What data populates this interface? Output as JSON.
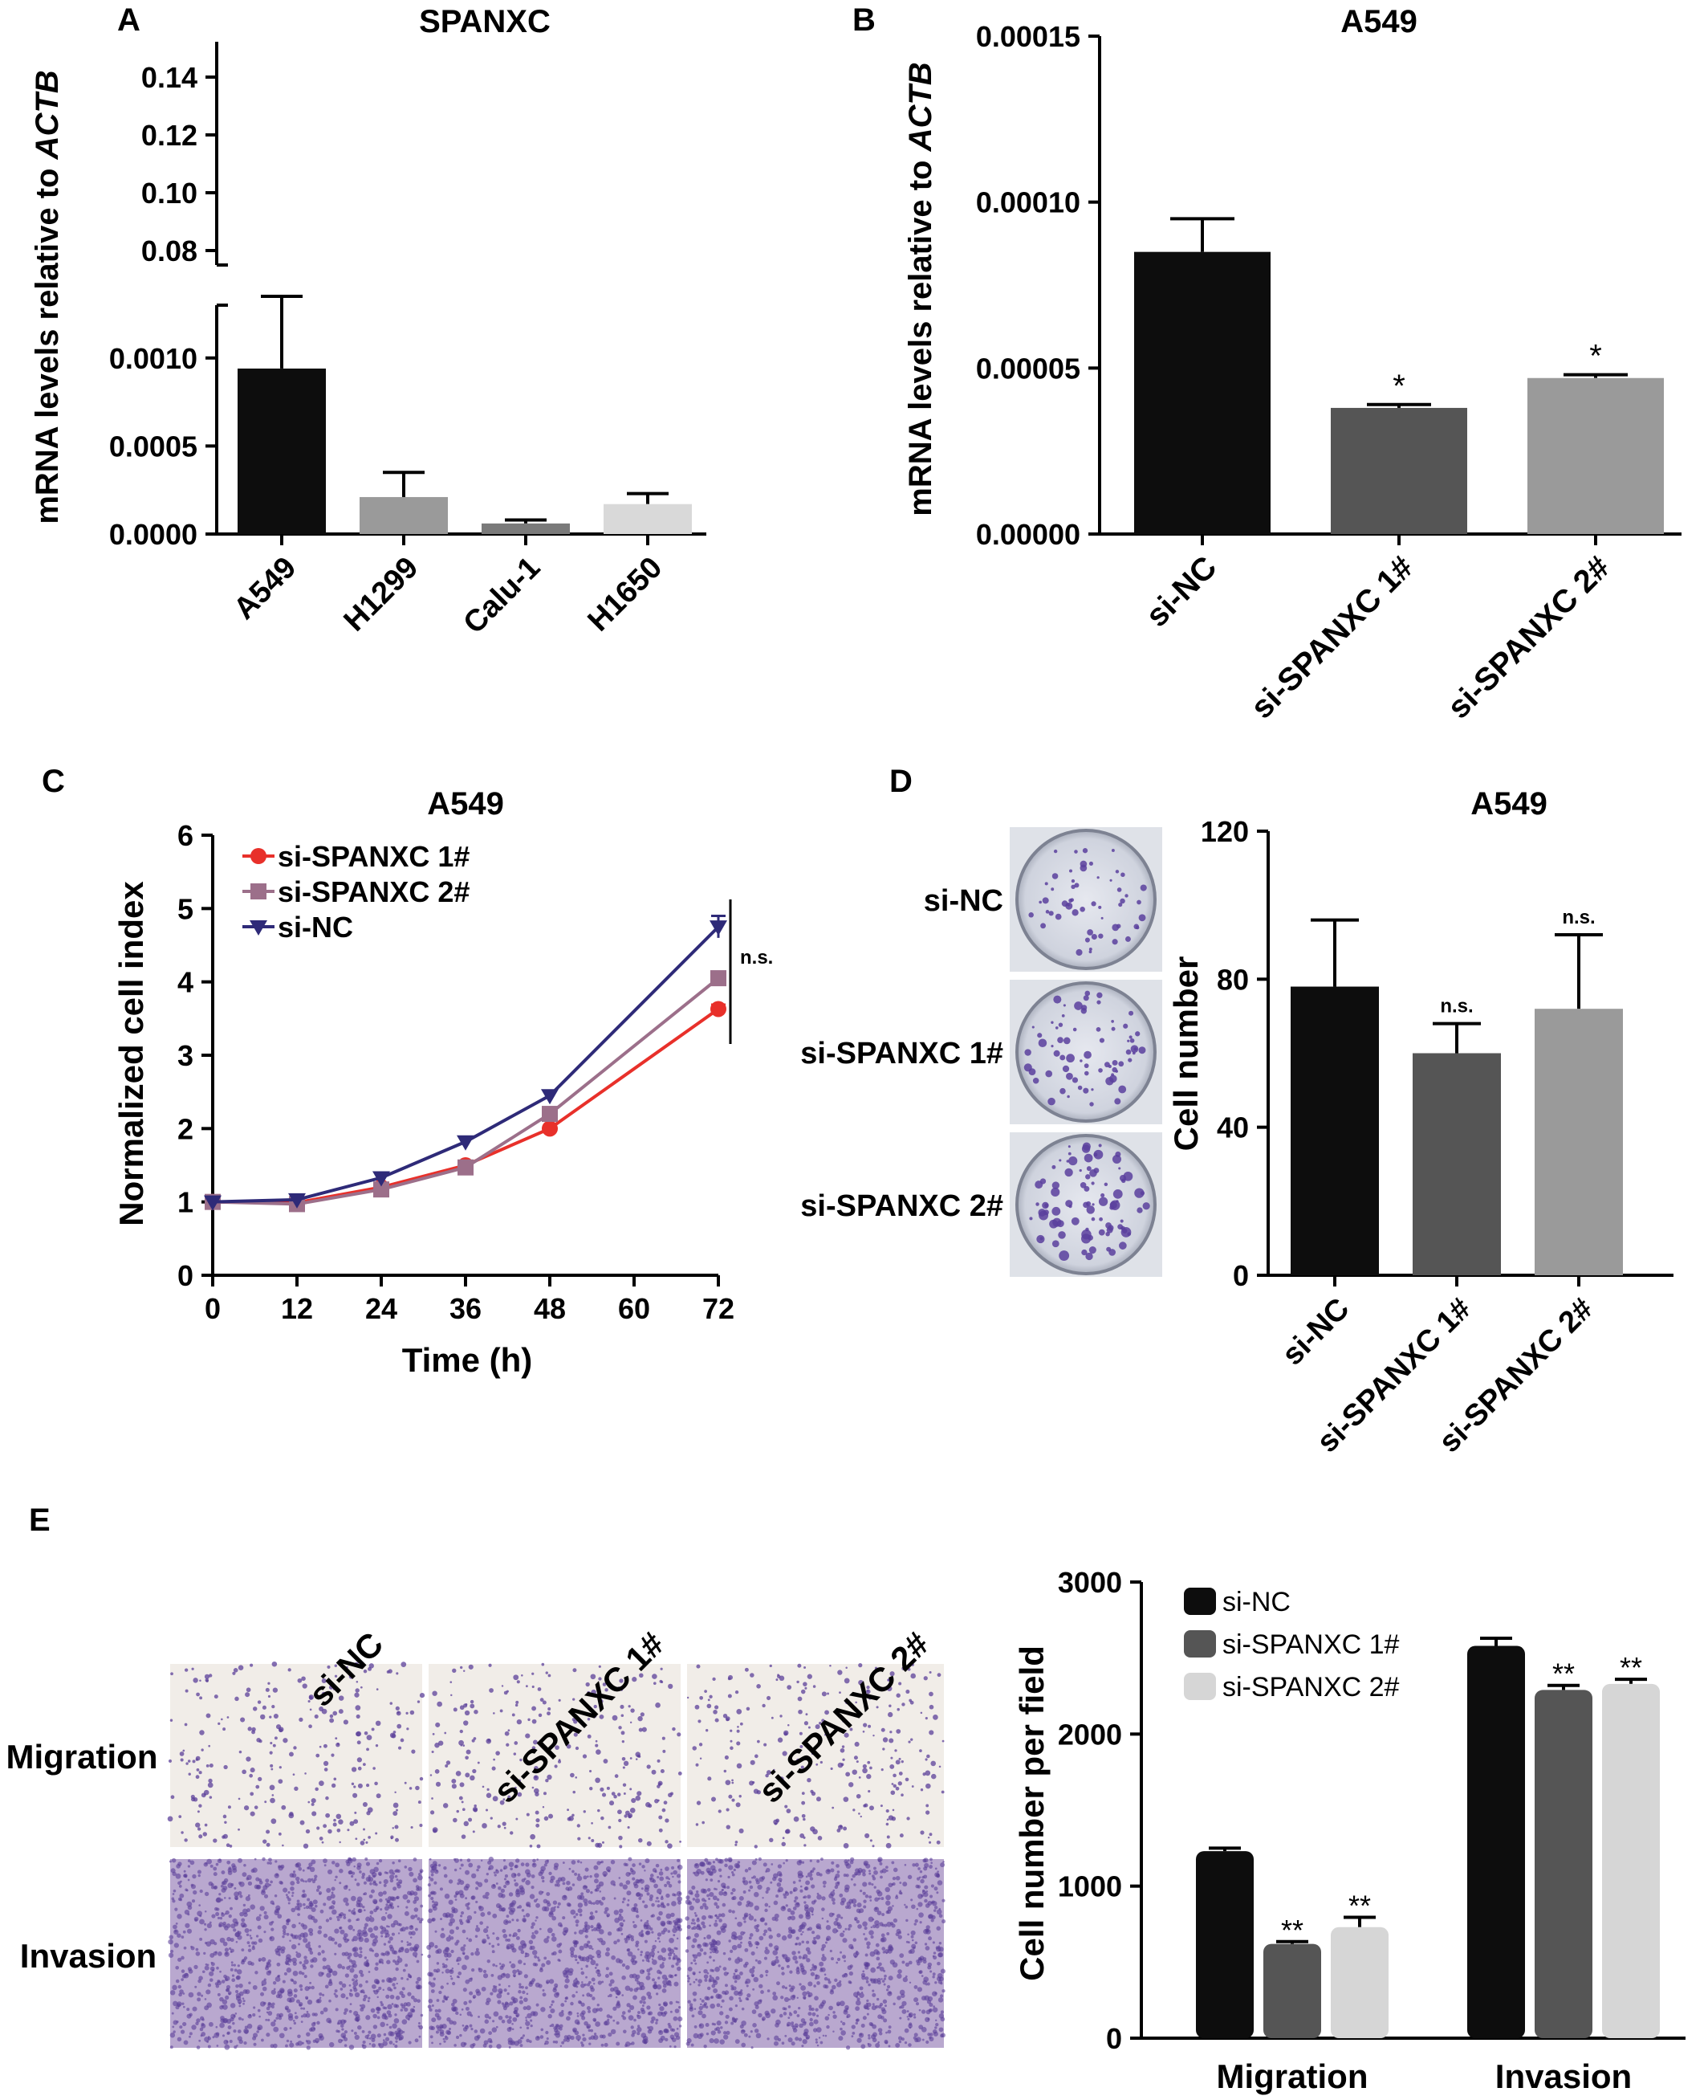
{
  "chart_data": [
    {
      "panel": "A",
      "type": "bar",
      "title": "SPANXC",
      "ylabel": "mRNA levels relative to ACTB",
      "ylabel_plain": "mRNA levels relative to ",
      "ylabel_italic": "ACTB",
      "categories": [
        "A549",
        "H1299",
        "Calu-1",
        "H1650"
      ],
      "values": [
        0.00094,
        0.00021,
        6e-05,
        0.00017
      ],
      "errors": [
        0.00041,
        0.00014,
        2e-05,
        6e-05
      ],
      "colors": [
        "#0d0d0d",
        "#9a9a9a",
        "#7a7a7a",
        "#d9d9d9"
      ],
      "axis_break": true,
      "y_lower_range": [
        0,
        0.0013
      ],
      "y_lower_ticks": [
        "0.0000",
        "0.0005",
        "0.0010"
      ],
      "y_upper_range": [
        0.075,
        0.15
      ],
      "y_upper_ticks": [
        "0.08",
        "0.10",
        "0.12",
        "0.14"
      ]
    },
    {
      "panel": "B",
      "type": "bar",
      "title": "A549",
      "ylabel": "mRNA levels relative to ACTB",
      "ylabel_plain": "mRNA levels relative to ",
      "ylabel_italic": "ACTB",
      "categories": [
        "si-NC",
        "si-SPANXC 1#",
        "si-SPANXC 2#"
      ],
      "values": [
        8.5e-05,
        3.8e-05,
        4.7e-05
      ],
      "errors": [
        1e-05,
        1e-06,
        1e-06
      ],
      "significance": [
        "",
        "*",
        "*"
      ],
      "colors": [
        "#0d0d0d",
        "#555555",
        "#9a9a9a"
      ],
      "ylim": [
        0,
        0.00015
      ],
      "yticks": [
        "0.00000",
        "0.00005",
        "0.00010",
        "0.00015"
      ]
    },
    {
      "panel": "C",
      "type": "line",
      "title": "A549",
      "xlabel": "Time (h)",
      "ylabel": "Normalized cell index",
      "x": [
        0,
        12,
        24,
        36,
        48,
        72
      ],
      "xlim": [
        0,
        72
      ],
      "xticks": [
        "0",
        "12",
        "24",
        "36",
        "48",
        "60",
        "72"
      ],
      "ylim": [
        0,
        6
      ],
      "yticks": [
        "0",
        "1",
        "2",
        "3",
        "4",
        "5",
        "6"
      ],
      "series": [
        {
          "name": "si-SPANXC 1#",
          "color": "#e8302a",
          "marker": "circle",
          "values": [
            1.0,
            0.99,
            1.2,
            1.5,
            2.0,
            3.63
          ],
          "errors": [
            0,
            0,
            0,
            0,
            0,
            0.06
          ]
        },
        {
          "name": "si-SPANXC 2#",
          "color": "#9c6f8a",
          "marker": "square",
          "values": [
            1.0,
            0.97,
            1.17,
            1.47,
            2.2,
            4.05
          ],
          "errors": [
            0,
            0,
            0,
            0,
            0,
            0.05
          ]
        },
        {
          "name": "si-NC",
          "color": "#2e2a78",
          "marker": "triangle-down",
          "values": [
            1.0,
            1.03,
            1.33,
            1.82,
            2.45,
            4.75
          ],
          "errors": [
            0,
            0,
            0,
            0,
            0,
            0.15
          ]
        }
      ],
      "annotation": "n.s."
    },
    {
      "panel": "D",
      "type": "bar",
      "title": "A549",
      "ylabel": "Cell number",
      "categories": [
        "si-NC",
        "si-SPANXC 1#",
        "si-SPANXC 2#"
      ],
      "values": [
        78,
        60,
        72
      ],
      "errors": [
        18,
        8,
        20
      ],
      "significance": [
        "",
        "n.s.",
        "n.s."
      ],
      "colors": [
        "#0d0d0d",
        "#555555",
        "#9a9a9a"
      ],
      "ylim": [
        0,
        120
      ],
      "yticks": [
        "0",
        "40",
        "80",
        "120"
      ]
    },
    {
      "panel": "E",
      "type": "bar",
      "ylabel": "Cell number per field",
      "categories": [
        "Migration",
        "Invasion"
      ],
      "series": [
        {
          "name": "si-NC",
          "color": "#0d0d0d",
          "values": [
            1230,
            2580
          ],
          "errors": [
            20,
            50
          ],
          "significance": [
            "",
            ""
          ]
        },
        {
          "name": "si-SPANXC 1#",
          "color": "#555555",
          "values": [
            620,
            2290
          ],
          "errors": [
            15,
            30
          ],
          "significance": [
            "**",
            "**"
          ]
        },
        {
          "name": "si-SPANXC 2#",
          "color": "#d6d6d6",
          "values": [
            730,
            2330
          ],
          "errors": [
            65,
            30
          ],
          "significance": [
            "**",
            "**"
          ]
        }
      ],
      "ylim": [
        0,
        3000
      ],
      "yticks": [
        "0",
        "1000",
        "2000",
        "3000"
      ]
    }
  ],
  "panel_letters": [
    "A",
    "B",
    "C",
    "D",
    "E"
  ],
  "colony_images": {
    "row_labels": [
      "si-NC",
      "si-SPANXC 1#",
      "si-SPANXC 2#"
    ],
    "stain_color": "#5a3f9e"
  },
  "transwell_images": {
    "column_labels": [
      "si-NC",
      "si-SPANXC 1#",
      "si-SPANXC 2#"
    ],
    "row_labels": [
      "Migration",
      "Invasion"
    ],
    "stain_color": "#5b3f9a"
  }
}
